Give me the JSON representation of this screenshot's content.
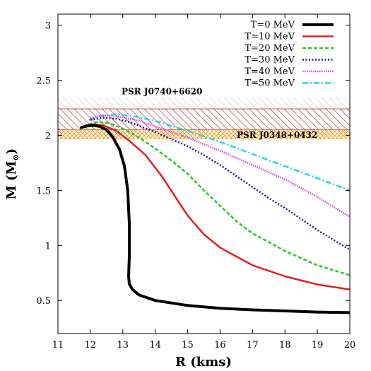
{
  "chart_data": {
    "type": "line",
    "xlabel": "R (kms)",
    "ylabel": "M (M",
    "ylabel_sub": "⊙",
    "ylabel_close": ")",
    "xlim": [
      11,
      20
    ],
    "ylim": [
      0.2,
      3.1
    ],
    "xticks": [
      11,
      12,
      13,
      14,
      15,
      16,
      17,
      18,
      19,
      20
    ],
    "yticks": [
      0.5,
      1,
      1.5,
      2,
      2.5,
      3
    ],
    "ytick_labels": [
      "0.5",
      "1",
      "1.5",
      "2",
      "2.5",
      "3"
    ],
    "legend_position": "top-right",
    "grid": false,
    "series": [
      {
        "name": "T=0 MeV",
        "color": "#000000",
        "dash": "solid",
        "points": [
          [
            11.72,
            2.07
          ],
          [
            11.9,
            2.085
          ],
          [
            12.1,
            2.09
          ],
          [
            12.3,
            2.08
          ],
          [
            12.5,
            2.05
          ],
          [
            12.7,
            1.98
          ],
          [
            12.9,
            1.87
          ],
          [
            13.05,
            1.72
          ],
          [
            13.15,
            1.5
          ],
          [
            13.2,
            1.2
          ],
          [
            13.2,
            0.9
          ],
          [
            13.18,
            0.72
          ],
          [
            13.2,
            0.65
          ],
          [
            13.3,
            0.6
          ],
          [
            13.5,
            0.55
          ],
          [
            14.0,
            0.5
          ],
          [
            15.0,
            0.455
          ],
          [
            16.0,
            0.43
          ],
          [
            17.0,
            0.415
          ],
          [
            18.0,
            0.405
          ],
          [
            19.0,
            0.395
          ],
          [
            20.0,
            0.39
          ]
        ]
      },
      {
        "name": "T=10 MeV",
        "color": "#e0201c",
        "dash": "solid",
        "points": [
          [
            11.85,
            2.09
          ],
          [
            12.1,
            2.1
          ],
          [
            12.4,
            2.09
          ],
          [
            12.8,
            2.04
          ],
          [
            13.2,
            1.95
          ],
          [
            13.7,
            1.82
          ],
          [
            14.2,
            1.63
          ],
          [
            14.6,
            1.45
          ],
          [
            15.0,
            1.27
          ],
          [
            15.5,
            1.1
          ],
          [
            16.0,
            0.98
          ],
          [
            17.0,
            0.82
          ],
          [
            18.0,
            0.72
          ],
          [
            19.0,
            0.645
          ],
          [
            20.0,
            0.6
          ]
        ]
      },
      {
        "name": "T=20 MeV",
        "color": "#22cc22",
        "dash": "dashed",
        "points": [
          [
            11.95,
            2.1
          ],
          [
            12.2,
            2.12
          ],
          [
            12.6,
            2.11
          ],
          [
            13.0,
            2.06
          ],
          [
            13.5,
            1.98
          ],
          [
            14.0,
            1.88
          ],
          [
            14.5,
            1.77
          ],
          [
            15.0,
            1.65
          ],
          [
            15.5,
            1.5
          ],
          [
            16.0,
            1.36
          ],
          [
            16.5,
            1.22
          ],
          [
            17.0,
            1.11
          ],
          [
            18.0,
            0.95
          ],
          [
            19.0,
            0.82
          ],
          [
            20.0,
            0.73
          ]
        ]
      },
      {
        "name": "T=30 MeV",
        "color": "#1a1aa0",
        "dash": "dotted",
        "points": [
          [
            12.0,
            2.14
          ],
          [
            12.4,
            2.16
          ],
          [
            12.8,
            2.15
          ],
          [
            13.2,
            2.12
          ],
          [
            14.0,
            2.03
          ],
          [
            15.0,
            1.9
          ],
          [
            15.5,
            1.82
          ],
          [
            16.0,
            1.73
          ],
          [
            16.5,
            1.63
          ],
          [
            17.0,
            1.53
          ],
          [
            17.5,
            1.43
          ],
          [
            18.0,
            1.34
          ],
          [
            19.0,
            1.14
          ],
          [
            20.0,
            0.96
          ]
        ]
      },
      {
        "name": "T=40 MeV",
        "color": "#dd44dd",
        "dash": "dense-dotted",
        "points": [
          [
            12.0,
            2.16
          ],
          [
            12.4,
            2.18
          ],
          [
            12.8,
            2.175
          ],
          [
            13.4,
            2.14
          ],
          [
            14.0,
            2.08
          ],
          [
            15.0,
            1.98
          ],
          [
            16.0,
            1.86
          ],
          [
            17.0,
            1.73
          ],
          [
            18.0,
            1.6
          ],
          [
            19.0,
            1.44
          ],
          [
            20.0,
            1.26
          ]
        ]
      },
      {
        "name": "T=50 MeV",
        "color": "#22d8e8",
        "dash": "dashdot",
        "points": [
          [
            11.95,
            2.14
          ],
          [
            12.4,
            2.18
          ],
          [
            12.8,
            2.19
          ],
          [
            13.4,
            2.17
          ],
          [
            14.0,
            2.13
          ],
          [
            15.0,
            2.04
          ],
          [
            16.0,
            1.94
          ],
          [
            17.0,
            1.83
          ],
          [
            18.0,
            1.72
          ],
          [
            19.0,
            1.61
          ],
          [
            20.0,
            1.5
          ]
        ]
      }
    ],
    "bands": [
      {
        "label": "PSR J0740+6620",
        "inner": [
          2.05,
          2.24
        ],
        "outer": [
          2.05,
          2.34
        ],
        "color": "#c03040",
        "pattern": "diagonal-hatch"
      },
      {
        "label": "PSR J0348+0432",
        "inner": [
          1.97,
          2.05
        ],
        "outer": [
          1.97,
          2.05
        ],
        "color": "#f0a020",
        "pattern": "cross-hatch"
      }
    ]
  }
}
